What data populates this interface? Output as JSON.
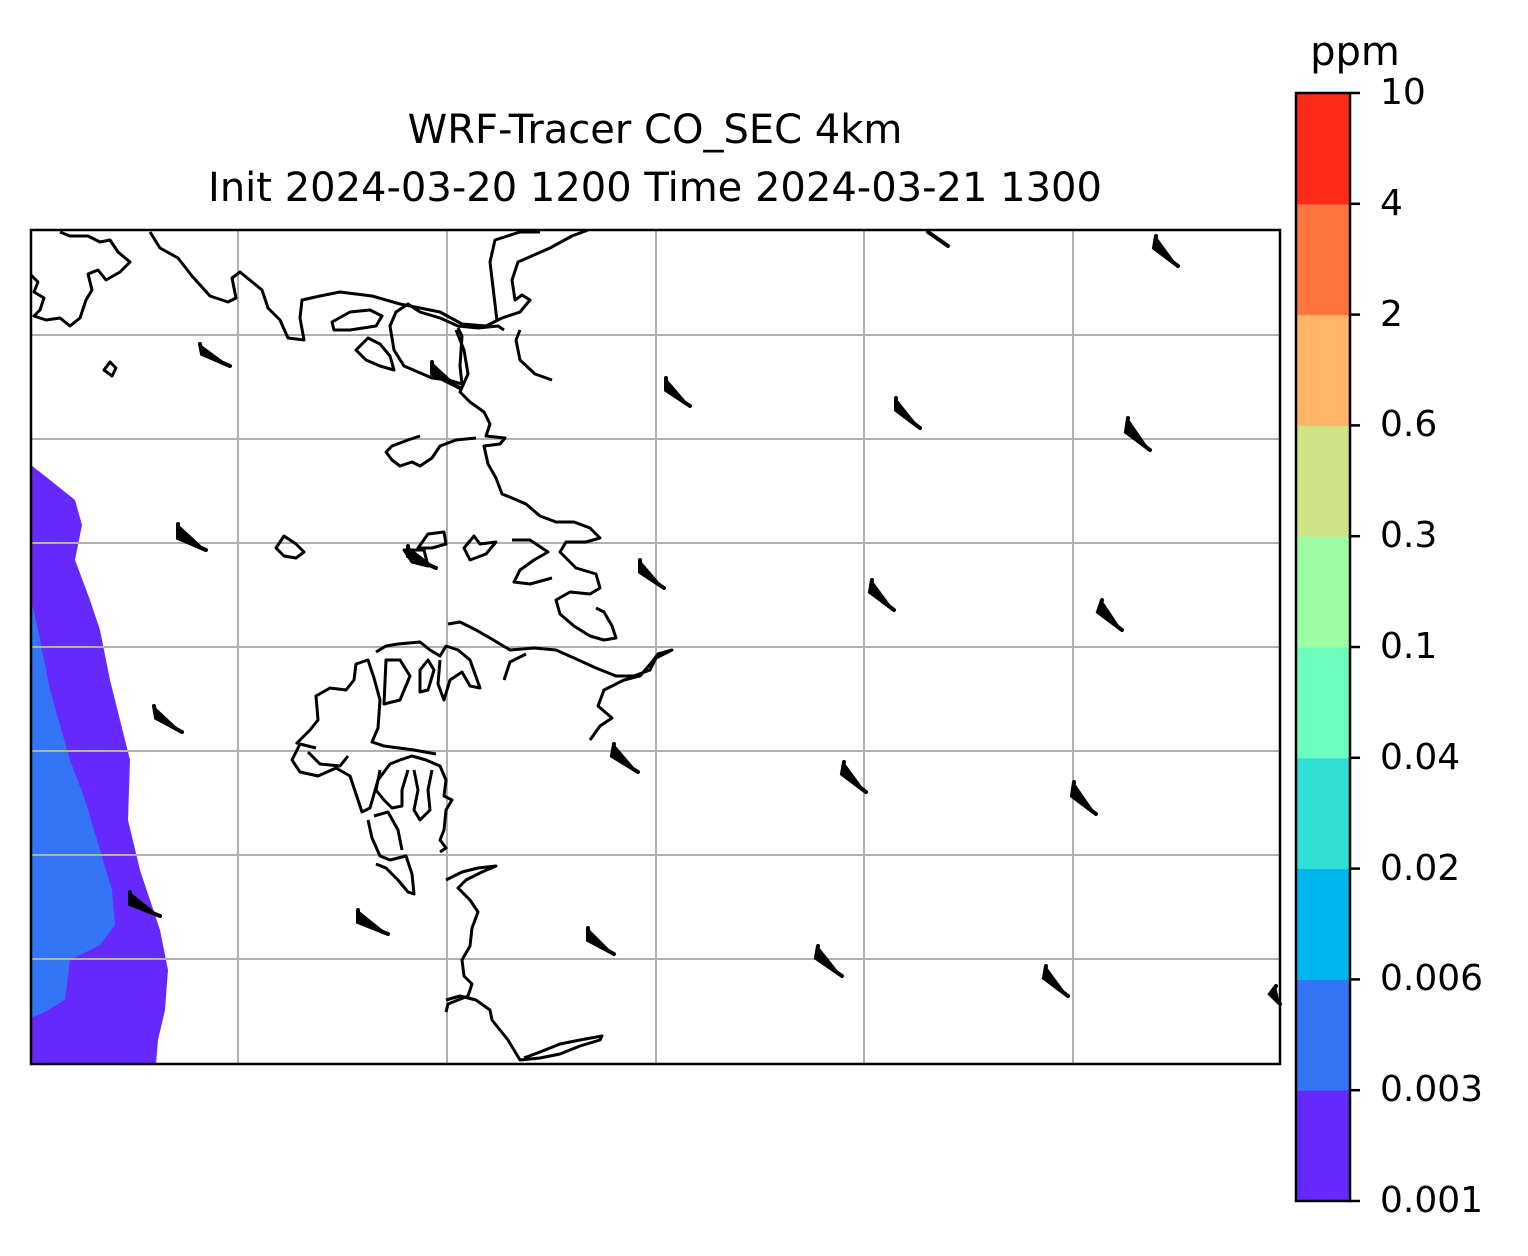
{
  "title": {
    "line1": "WRF-Tracer CO_SEC 4km",
    "line2": "Init 2024-03-20 1200 Time 2024-03-21 1300"
  },
  "colorbar": {
    "unit": "ppm",
    "levels": [
      "0.001",
      "0.003",
      "0.006",
      "0.02",
      "0.04",
      "0.1",
      "0.3",
      "0.6",
      "2",
      "4",
      "10"
    ],
    "colors": [
      "#6629fd",
      "#3475f5",
      "#00b4ed",
      "#30e0d7",
      "#6bfebf",
      "#9dfda3",
      "#d0e386",
      "#ffb466",
      "#ff733f",
      "#ff2a18"
    ]
  },
  "map": {
    "gridlines": true,
    "gridline_color": "#b0b0b0",
    "coastline_color": "#000000",
    "wind_barbs": "present"
  }
}
